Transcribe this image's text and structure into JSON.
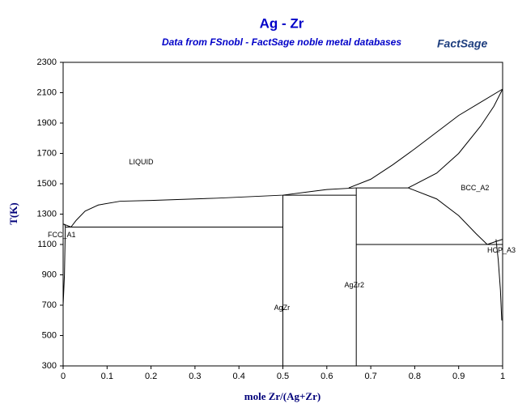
{
  "chart_data": {
    "type": "line",
    "title": "Ag - Zr",
    "subtitle": "Data from FSnobl - FactSage noble metal databases",
    "logo": "FactSage",
    "x_label": "mole Zr/(Ag+Zr)",
    "y_label": "T(K)",
    "color": "#000000",
    "xlim": [
      0,
      1
    ],
    "xticks": [
      0,
      0.1,
      0.2,
      0.3,
      0.4,
      0.5,
      0.6,
      0.7,
      0.8,
      0.9,
      1
    ],
    "ylim": [
      300,
      2300
    ],
    "yticks": [
      300,
      500,
      700,
      900,
      1100,
      1300,
      1500,
      1700,
      1900,
      2100,
      2300
    ],
    "annotations": [
      "LIQUID",
      "FCC_A1",
      "BCC_A2",
      "HCP_A3",
      "AgZr",
      "AgZr2"
    ],
    "series": [
      {
        "x": [
          0,
          0.01,
          0.018,
          0.03,
          0.05,
          0.08,
          0.13,
          0.2,
          0.35,
          0.5,
          0.6,
          0.667
        ],
        "values": [
          1235,
          1224,
          1215,
          1260,
          1320,
          1360,
          1385,
          1390,
          1405,
          1425,
          1462,
          1473
        ]
      },
      {
        "x": [
          0.005,
          0.5
        ],
        "values": [
          1215,
          1215
        ]
      },
      {
        "x": [
          0.5,
          0.667
        ],
        "values": [
          1425,
          1425
        ]
      },
      {
        "x": [
          0.5,
          0.5
        ],
        "values": [
          300,
          1425
        ]
      },
      {
        "x": [
          0.667,
          0.667
        ],
        "values": [
          300,
          1473
        ]
      },
      {
        "x": [
          0.667,
          0.785
        ],
        "values": [
          1473,
          1473
        ]
      },
      {
        "x": [
          0.65,
          0.7,
          0.75,
          0.8,
          0.9,
          1
        ],
        "values": [
          1473,
          1530,
          1625,
          1730,
          1950,
          2124
        ]
      },
      {
        "x": [
          0.785,
          0.85,
          0.9,
          0.95,
          0.98,
          1
        ],
        "values": [
          1473,
          1570,
          1700,
          1880,
          2010,
          2124
        ]
      },
      {
        "x": [
          0.785,
          0.85,
          0.9,
          0.94,
          0.965
        ],
        "values": [
          1473,
          1400,
          1290,
          1170,
          1100
        ]
      },
      {
        "x": [
          0.667,
          1
        ],
        "values": [
          1100,
          1100
        ]
      },
      {
        "x": [
          0.965,
          0.985,
          1
        ],
        "values": [
          1100,
          1120,
          1134
        ]
      },
      {
        "x": [
          0.985,
          0.99,
          0.995,
          0.998
        ],
        "values": [
          1134,
          1000,
          800,
          600
        ]
      },
      {
        "x": [
          0,
          0.004,
          0.005,
          0.003,
          0
        ],
        "values": [
          1235,
          1230,
          1215,
          900,
          700
        ]
      }
    ]
  }
}
